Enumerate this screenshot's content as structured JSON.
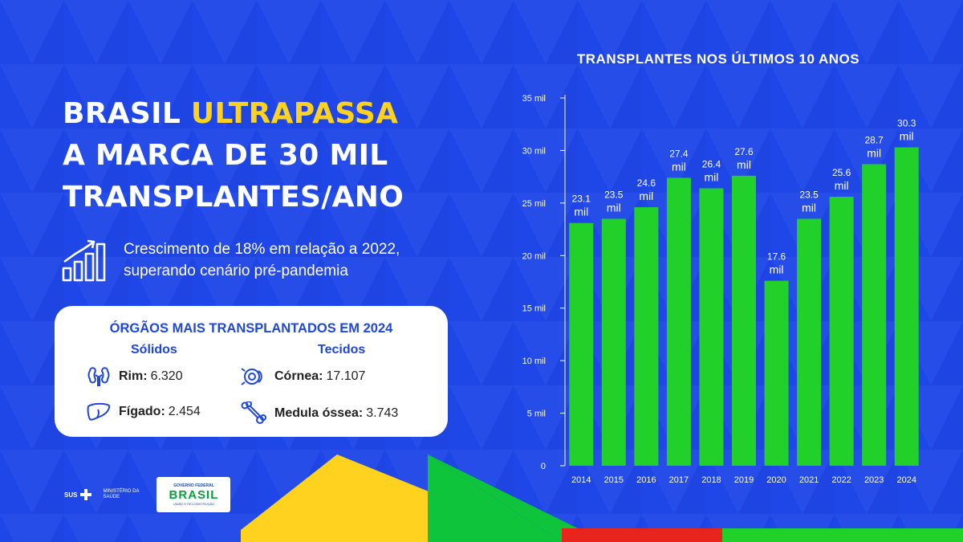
{
  "headline": {
    "part1": "BRASIL ",
    "part1_highlight": "ULTRAPASSA",
    "line2": "A MARCA DE 30 MIL",
    "line3": "TRANSPLANTES/ANO"
  },
  "growth": {
    "line1": "Crescimento de 18% em relação a 2022,",
    "line2": "superando cenário pré-pandemia",
    "icon": "growth-bars-icon"
  },
  "organs": {
    "title": "ÓRGÃOS MAIS TRANSPLANTADOS EM 2024",
    "solid_header": "Sólidos",
    "tissue_header": "Tecidos",
    "items": [
      {
        "label": "Rim:",
        "value": "6.320",
        "icon": "kidney-icon"
      },
      {
        "label": "Fígado:",
        "value": "2.454",
        "icon": "liver-icon"
      },
      {
        "label": "Córnea:",
        "value": "17.107",
        "icon": "eye-icon"
      },
      {
        "label": "Medula óssea:",
        "value": "3.743",
        "icon": "bone-icon"
      }
    ]
  },
  "logos": {
    "sus": "SUS",
    "ministry_line1": "MINISTÉRIO DA",
    "ministry_line2": "SAÚDE",
    "gov_line1": "GOVERNO FEDERAL",
    "gov_line2": "BRASIL",
    "gov_line3": "UNIÃO E RECONSTRUÇÃO"
  },
  "colors": {
    "background": "#1f47e8",
    "highlight": "#ffd21f",
    "bar": "#21d12a",
    "card_title": "#1f47d8"
  },
  "chart_data": {
    "type": "bar",
    "title": "TRANSPLANTES NOS ÚLTIMOS 10 ANOS",
    "categories": [
      "2014",
      "2015",
      "2016",
      "2017",
      "2018",
      "2019",
      "2020",
      "2021",
      "2022",
      "2023",
      "2024"
    ],
    "values": [
      23.1,
      23.5,
      24.6,
      27.4,
      26.4,
      27.6,
      17.6,
      23.5,
      25.6,
      28.7,
      30.3
    ],
    "data_labels": [
      [
        "23.1",
        "mil"
      ],
      [
        "23.5",
        "mil"
      ],
      [
        "24.6",
        "mil"
      ],
      [
        "27.4",
        "mil"
      ],
      [
        "26.4",
        "mil"
      ],
      [
        "27.6",
        "mil"
      ],
      [
        "17.6",
        "mil"
      ],
      [
        "23.5",
        "mil"
      ],
      [
        "25.6",
        "mil"
      ],
      [
        "28.7",
        "mil"
      ],
      [
        "30.3",
        "mil"
      ]
    ],
    "y_ticks": [
      0,
      5,
      10,
      15,
      20,
      25,
      30,
      35
    ],
    "y_tick_labels": [
      "0",
      "5 mil",
      "10 mil",
      "15 mil",
      "20 mil",
      "25 mil",
      "30 mil",
      "35 mil"
    ],
    "ylim": [
      0,
      35
    ],
    "grid": false,
    "legend": "none"
  }
}
